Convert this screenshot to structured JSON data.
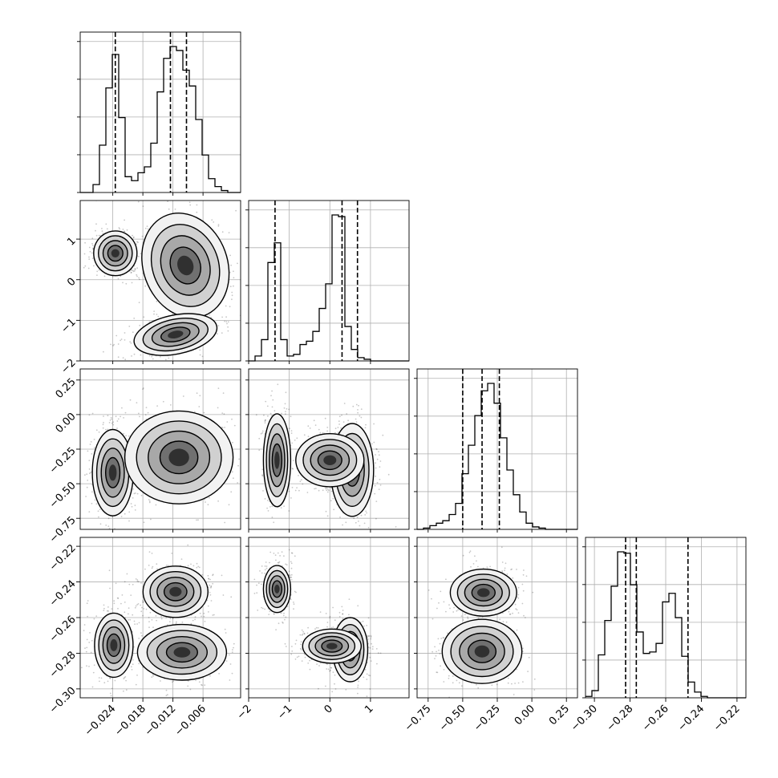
{
  "chart_data": {
    "type": "corner",
    "grid": true,
    "params": [
      {
        "range": [
          -0.0305,
          0.0015
        ],
        "ticks": [
          -0.024,
          -0.018,
          -0.012,
          -0.006
        ],
        "tick_labels": [
          "−0.024",
          "−0.018",
          "−0.012",
          "−0.006"
        ]
      },
      {
        "range": [
          -2.0,
          1.95
        ],
        "ticks": [
          -2,
          -1,
          0,
          1
        ],
        "tick_labels": [
          "−2",
          "−1",
          "0",
          "1"
        ]
      },
      {
        "range": [
          -0.83,
          0.33
        ],
        "ticks": [
          -0.75,
          -0.5,
          -0.25,
          0.0,
          0.25
        ],
        "tick_labels": [
          "−0.75",
          "−0.50",
          "−0.25",
          "0.00",
          "0.25"
        ]
      },
      {
        "range": [
          -0.305,
          -0.215
        ],
        "ticks": [
          -0.3,
          -0.28,
          -0.26,
          -0.24,
          -0.22
        ],
        "tick_labels": [
          "−0.30",
          "−0.28",
          "−0.26",
          "−0.24",
          "−0.22"
        ]
      }
    ],
    "histograms": [
      {
        "x_start": -0.0305,
        "bin_width": 0.00128,
        "counts": [
          0,
          0,
          4,
          24,
          53,
          70,
          38,
          8,
          6,
          10,
          13,
          25,
          51,
          68,
          74,
          72,
          62,
          54,
          37,
          19,
          7,
          3,
          1,
          0,
          0
        ],
        "quantiles": [
          -0.0235,
          -0.0125,
          -0.0093
        ]
      },
      {
        "x_start": -2.0,
        "bin_width": 0.158,
        "counts": [
          0,
          3,
          13,
          60,
          72,
          13,
          3,
          4,
          10,
          12,
          18,
          32,
          47,
          89,
          88,
          21,
          7,
          2,
          1,
          0,
          0,
          0,
          0,
          0,
          0
        ],
        "quantiles": [
          -1.35,
          0.3,
          0.68
        ]
      },
      {
        "x_start": -0.83,
        "bin_width": 0.0464,
        "counts": [
          0,
          1,
          3,
          5,
          7,
          12,
          21,
          45,
          68,
          92,
          112,
          118,
          102,
          74,
          48,
          28,
          14,
          5,
          2,
          1,
          0,
          0,
          0,
          0,
          0
        ],
        "quantiles": [
          -0.5,
          -0.36,
          -0.235
        ]
      },
      {
        "x_start": -0.305,
        "bin_width": 0.0036,
        "counts": [
          1,
          5,
          30,
          54,
          78,
          102,
          101,
          79,
          46,
          31,
          32,
          38,
          67,
          73,
          56,
          29,
          11,
          4,
          1,
          0,
          0,
          0,
          0,
          0,
          0
        ],
        "quantiles": [
          -0.2825,
          -0.2765,
          -0.2475
        ]
      }
    ],
    "panels_2d": [
      {
        "x_param": 0,
        "y_param": 1,
        "modes": [
          {
            "x": -0.0235,
            "y": 0.65,
            "sx": 0.0018,
            "sy": 0.23
          },
          {
            "x": -0.0095,
            "y": 0.35,
            "sx": 0.0035,
            "sy": 0.55,
            "rot": -0.35
          },
          {
            "x": -0.0115,
            "y": -1.35,
            "sx": 0.0035,
            "sy": 0.2,
            "rot": -0.2
          }
        ]
      },
      {
        "x_param": 0,
        "y_param": 2,
        "modes": [
          {
            "x": -0.024,
            "y": -0.42,
            "sx": 0.0017,
            "sy": 0.13
          },
          {
            "x": -0.0108,
            "y": -0.31,
            "sx": 0.0045,
            "sy": 0.14
          }
        ]
      },
      {
        "x_param": 1,
        "y_param": 2,
        "modes": [
          {
            "x": -1.3,
            "y": -0.33,
            "sx": 0.14,
            "sy": 0.14
          },
          {
            "x": 0.55,
            "y": -0.4,
            "sx": 0.22,
            "sy": 0.14
          },
          {
            "x": 0.0,
            "y": -0.33,
            "sx": 0.35,
            "sy": 0.08
          }
        ]
      },
      {
        "x_param": 0,
        "y_param": 3,
        "modes": [
          {
            "x": -0.0238,
            "y": -0.2755,
            "sx": 0.0016,
            "sy": 0.0075
          },
          {
            "x": -0.0115,
            "y": -0.2455,
            "sx": 0.0027,
            "sy": 0.006
          },
          {
            "x": -0.0102,
            "y": -0.2795,
            "sx": 0.0037,
            "sy": 0.0065
          }
        ]
      },
      {
        "x_param": 1,
        "y_param": 3,
        "modes": [
          {
            "x": -1.3,
            "y": -0.244,
            "sx": 0.14,
            "sy": 0.0055
          },
          {
            "x": 0.5,
            "y": -0.278,
            "sx": 0.18,
            "sy": 0.0075
          },
          {
            "x": 0.05,
            "y": -0.276,
            "sx": 0.3,
            "sy": 0.004
          }
        ]
      },
      {
        "x_param": 2,
        "y_param": 3,
        "modes": [
          {
            "x": -0.35,
            "y": -0.246,
            "sx": 0.1,
            "sy": 0.0055
          },
          {
            "x": -0.36,
            "y": -0.279,
            "sx": 0.12,
            "sy": 0.0075
          }
        ]
      }
    ],
    "contour_levels": [
      0.82,
      0.55,
      0.3,
      0.12
    ]
  }
}
